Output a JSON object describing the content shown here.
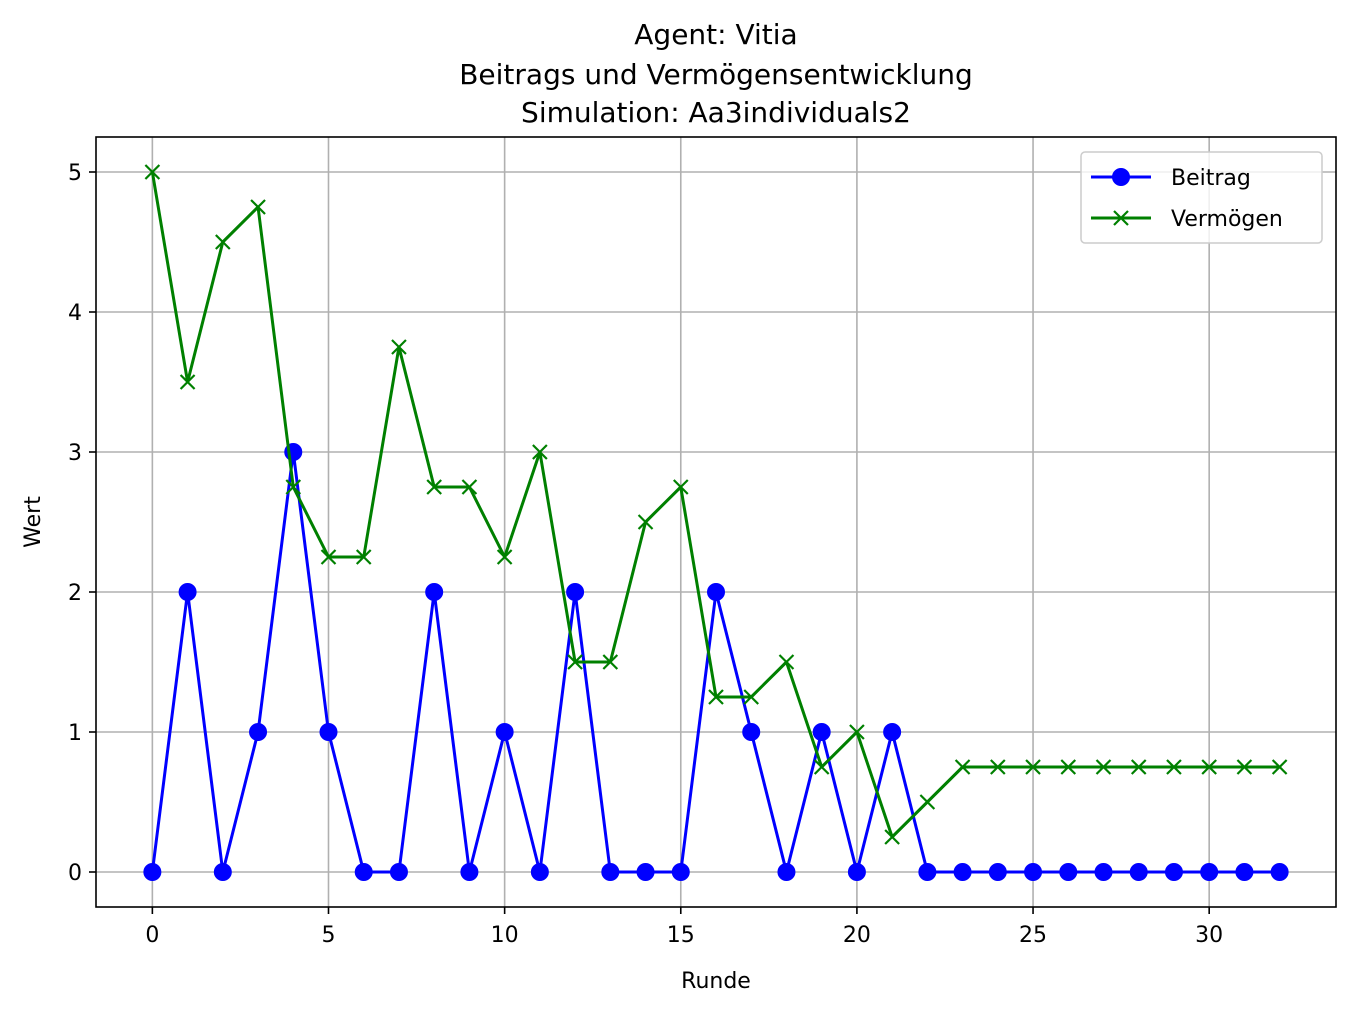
{
  "chart_data": {
    "type": "line",
    "title_lines": [
      "Agent: Vitia",
      "Beitrags und Vermögensentwicklung",
      "Simulation: Aa3individuals2"
    ],
    "xlabel": "Runde",
    "ylabel": "Wert",
    "xlim": [
      -1.6,
      33.6
    ],
    "ylim": [
      -0.25,
      5.25
    ],
    "xticks": [
      0,
      5,
      10,
      15,
      20,
      25,
      30
    ],
    "yticks": [
      0,
      1,
      2,
      3,
      4,
      5
    ],
    "grid": true,
    "legend_position": "upper right",
    "x": [
      0,
      1,
      2,
      3,
      4,
      5,
      6,
      7,
      8,
      9,
      10,
      11,
      12,
      13,
      14,
      15,
      16,
      17,
      18,
      19,
      20,
      21,
      22,
      23,
      24,
      25,
      26,
      27,
      28,
      29,
      30,
      31,
      32
    ],
    "series": [
      {
        "name": "Beitrag",
        "color": "#0000ff",
        "marker": "circle",
        "values": [
          0,
          2,
          0,
          1,
          3,
          1,
          0,
          0,
          2,
          0,
          1,
          0,
          2,
          0,
          0,
          0,
          2,
          1,
          0,
          1,
          0,
          1,
          0,
          0,
          0,
          0,
          0,
          0,
          0,
          0,
          0,
          0,
          0
        ]
      },
      {
        "name": "Vermögen",
        "color": "#008000",
        "marker": "x",
        "values": [
          5,
          3.5,
          4.5,
          4.75,
          2.75,
          2.25,
          2.25,
          3.75,
          2.75,
          2.75,
          2.25,
          3,
          1.5,
          1.5,
          2.5,
          2.75,
          1.25,
          1.25,
          1.5,
          0.75,
          1,
          0.25,
          0.5,
          0.75,
          0.75,
          0.75,
          0.75,
          0.75,
          0.75,
          0.75,
          0.75,
          0.75,
          0.75
        ]
      }
    ]
  }
}
